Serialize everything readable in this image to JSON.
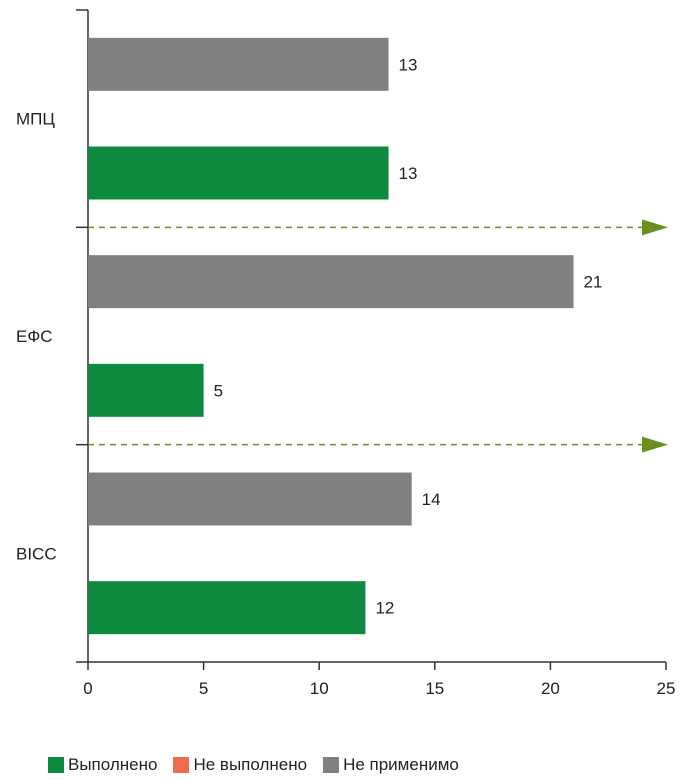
{
  "chart_data": {
    "type": "bar",
    "orientation": "horizontal",
    "title": "",
    "xlabel": "",
    "ylabel": "",
    "xlim": [
      0,
      25
    ],
    "x_ticks": [
      "0",
      "5",
      "10",
      "15",
      "20",
      "25"
    ],
    "grid": false,
    "legend_position": "bottom",
    "groups": [
      {
        "label": "МПЦ",
        "bars": [
          {
            "series": "Не применимо",
            "value": 13,
            "label": "13"
          },
          {
            "series": "Выполнено",
            "value": 13,
            "label": "13"
          }
        ]
      },
      {
        "label": "ЕФС",
        "bars": [
          {
            "series": "Не применимо",
            "value": 21,
            "label": "21"
          },
          {
            "series": "Выполнено",
            "value": 5,
            "label": "5"
          }
        ]
      },
      {
        "label": "BICC",
        "bars": [
          {
            "series": "Не применимо",
            "value": 14,
            "label": "14"
          },
          {
            "series": "Выполнено",
            "value": 12,
            "label": "12"
          }
        ]
      }
    ],
    "legend": [
      {
        "name": "Выполнено",
        "color": "#0e8a3e"
      },
      {
        "name": "Не выполнено",
        "color": "#f26b4f"
      },
      {
        "name": "Не применимо",
        "color": "#808080"
      }
    ],
    "separator_color": "#6b8e23"
  }
}
